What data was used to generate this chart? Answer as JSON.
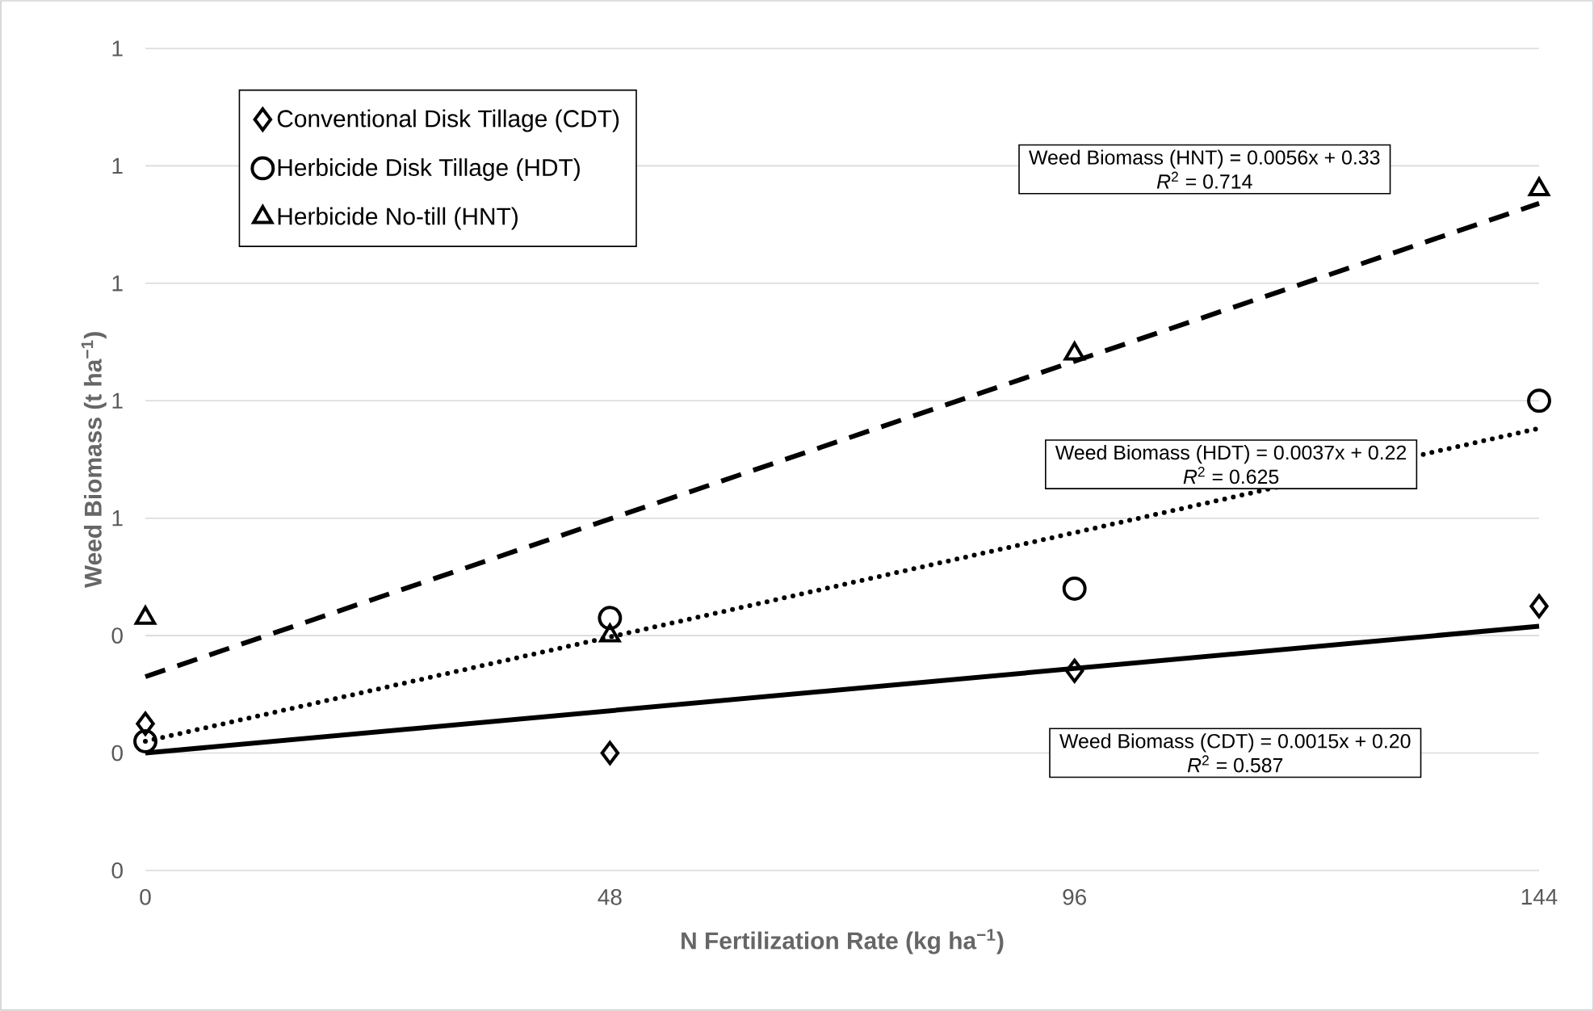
{
  "chart_data": {
    "type": "scatter",
    "xlabel": "N Fertilization Rate (kg ha$^{−1}$)",
    "ylabel": "Weed Biomass (t ha$^{−1}$)",
    "xlim": [
      0,
      144
    ],
    "xticks": [
      0,
      48,
      96,
      144
    ],
    "ylim": [
      0,
      1.4
    ],
    "yticks": [
      0,
      {
        "value": 0.2,
        "label": "0"
      },
      {
        "value": 0.4,
        "label": "0"
      },
      {
        "value": 0.6,
        "label": "1"
      },
      {
        "value": 0.8,
        "label": "1"
      },
      {
        "value": 1.0,
        "label": "1"
      },
      {
        "value": 1.2,
        "label": "1"
      },
      {
        "value": 1.4,
        "label": "1"
      }
    ],
    "grid": "y",
    "legend": "top left",
    "series": [
      {
        "name": "Conventional  Disk Tillage (CDT)",
        "marker": "diamond",
        "color": "#000000",
        "x": [
          0,
          48,
          96,
          144
        ],
        "values": [
          0.25,
          0.2,
          0.34,
          0.45
        ]
      },
      {
        "name": "Herbicide Disk Tillage (HDT)",
        "marker": "circle",
        "color": "#000000",
        "x": [
          0,
          48,
          96,
          144
        ],
        "values": [
          0.22,
          0.43,
          0.48,
          0.8
        ]
      },
      {
        "name": "Herbicide No-till (HNT)",
        "marker": "triangle",
        "color": "#000000",
        "x": [
          0,
          48,
          96,
          144
        ],
        "values": [
          0.43,
          0.4,
          0.88,
          1.16
        ]
      },
      {
        "type": "line",
        "line_style": "solid",
        "color": "#000000",
        "x": [
          0,
          144
        ],
        "values": [
          0.2,
          0.416
        ]
      },
      {
        "type": "line",
        "line_style": "dotted",
        "color": "#000000",
        "x": [
          0,
          144
        ],
        "values": [
          0.22,
          0.753
        ]
      },
      {
        "type": "line",
        "line_style": "dashed",
        "color": "#000000",
        "x": [
          0,
          144
        ],
        "values": [
          0.33,
          1.136
        ]
      }
    ],
    "annotations": [
      "Weed Biomass (HNT) = 0.0056x + 0.33",
      "*R*$^{2}$ = 0.714",
      "Weed Biomass (HDT) = 0.0037x + 0.22",
      "*R*$^{2}$ = 0.625",
      "Weed Biomass (CDT) = 0.0015x + 0.20",
      "*R*$^{2}$ = 0.587"
    ]
  }
}
